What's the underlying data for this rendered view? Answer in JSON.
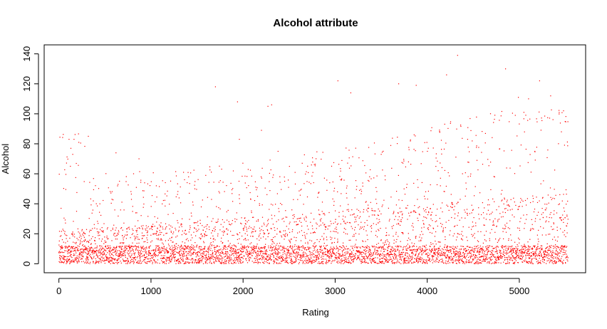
{
  "chart_data": {
    "type": "scatter",
    "title": "Alcohol attribute",
    "xlabel": "Rating",
    "ylabel": "Alcohol",
    "xlim": [
      -160,
      5720
    ],
    "ylim": [
      -6,
      146
    ],
    "x_ticks": [
      0,
      1000,
      2000,
      3000,
      4000,
      5000
    ],
    "y_ticks": [
      0,
      20,
      40,
      60,
      80,
      100,
      120,
      140
    ],
    "x_tick_labels": [
      "0",
      "1000",
      "2000",
      "3000",
      "4000",
      "5000"
    ],
    "y_tick_labels": [
      "0",
      "20",
      "40",
      "60",
      "80",
      "100",
      "120",
      "140"
    ],
    "grid": false,
    "point_color": "#ff0000",
    "n_points": 5530,
    "series": [
      {
        "values_description_points": [],
        "notable_points": [
          [
            110,
            83
          ],
          [
            130,
            77
          ],
          [
            150,
            73
          ],
          [
            320,
            85
          ],
          [
            620,
            74
          ],
          [
            870,
            70
          ],
          [
            1700,
            118
          ],
          [
            1940,
            108
          ],
          [
            1960,
            83
          ],
          [
            2200,
            89
          ],
          [
            2270,
            105
          ],
          [
            2310,
            106
          ],
          [
            2380,
            75
          ],
          [
            3030,
            122
          ],
          [
            3170,
            114
          ],
          [
            3690,
            120
          ],
          [
            3880,
            119
          ],
          [
            4210,
            126
          ],
          [
            4330,
            139
          ],
          [
            4850,
            130
          ],
          [
            5220,
            122
          ],
          [
            5340,
            112
          ],
          [
            5480,
            102
          ],
          [
            5050,
            101
          ],
          [
            4990,
            111
          ],
          [
            5100,
            110
          ]
        ]
      }
    ]
  }
}
